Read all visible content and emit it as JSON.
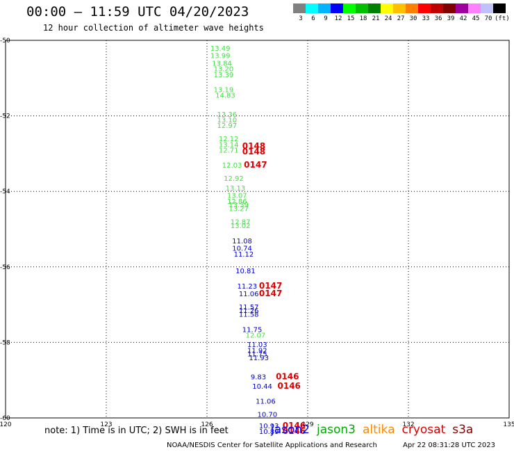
{
  "header": {
    "title": "00:00 – 11:59 UTC 04/20/2023",
    "subtitle": "12 hour collection of altimeter wave heights"
  },
  "color_scale": {
    "swatches": [
      "#808080",
      "#00ffff",
      "#00b4ff",
      "#0000ff",
      "#00ff00",
      "#00c000",
      "#008000",
      "#ffff00",
      "#ffc000",
      "#ff8000",
      "#ff0000",
      "#c00000",
      "#800000",
      "#a000a0",
      "#ff80ff",
      "#c0c0ff",
      "#000000"
    ],
    "labels": [
      "3",
      "6",
      "9",
      "12",
      "15",
      "18",
      "21",
      "24",
      "27",
      "30",
      "33",
      "36",
      "39",
      "42",
      "45",
      "70",
      "(ft)"
    ]
  },
  "note": "note: 1) Time is in UTC; 2) SWH is in feet",
  "legend": [
    {
      "label": "jason2",
      "color": "#0000ff"
    },
    {
      "label": "jason3",
      "color": "#00aa00"
    },
    {
      "label": "altika",
      "color": "#ff8800"
    },
    {
      "label": "cryosat",
      "color": "#dd0000"
    },
    {
      "label": "s3a",
      "color": "#880000"
    }
  ],
  "footer": {
    "credit": "NOAA/NESDIS Center for Satellite Applications and Research",
    "date": "Apr 22 08:31:28 UTC 2023"
  },
  "chart_data": {
    "type": "scatter",
    "xlim": [
      120,
      135
    ],
    "ylim": [
      -60,
      -50
    ],
    "x_ticks": [
      "120",
      "123",
      "126",
      "129",
      "132",
      "135"
    ],
    "y_ticks": [
      "-50",
      "-52",
      "-54",
      "-56",
      "-58",
      "-60"
    ],
    "grid": true,
    "series": [
      {
        "color": "#44dd44",
        "points": [
          {
            "x": 126.1,
            "y": -50.2,
            "label": "13.49"
          },
          {
            "x": 126.1,
            "y": -50.4,
            "label": "13.99"
          },
          {
            "x": 126.15,
            "y": -50.6,
            "label": "13.84"
          },
          {
            "x": 126.2,
            "y": -50.75,
            "label": "13.20"
          },
          {
            "x": 126.2,
            "y": -50.9,
            "label": "13.39"
          },
          {
            "x": 126.2,
            "y": -51.3,
            "label": "13.19"
          },
          {
            "x": 126.25,
            "y": -51.45,
            "label": "14.83"
          },
          {
            "x": 126.3,
            "y": -51.95,
            "label": "13.36"
          },
          {
            "x": 126.3,
            "y": -52.1,
            "label": "13.10"
          },
          {
            "x": 126.3,
            "y": -52.25,
            "label": "12.97"
          },
          {
            "x": 126.35,
            "y": -52.6,
            "label": "12.12"
          },
          {
            "x": 126.35,
            "y": -52.75,
            "label": "13.14"
          },
          {
            "x": 126.35,
            "y": -52.9,
            "label": "12.71"
          },
          {
            "x": 126.45,
            "y": -53.3,
            "label": "12.03"
          },
          {
            "x": 126.5,
            "y": -53.65,
            "label": "12.92"
          },
          {
            "x": 126.55,
            "y": -53.9,
            "label": "13.13"
          },
          {
            "x": 126.6,
            "y": -54.1,
            "label": "13.07"
          },
          {
            "x": 126.6,
            "y": -54.25,
            "label": "12.86"
          },
          {
            "x": 126.65,
            "y": -54.35,
            "label": "13.39"
          },
          {
            "x": 126.65,
            "y": -54.45,
            "label": "13.27"
          },
          {
            "x": 126.7,
            "y": -54.8,
            "label": "12.87"
          },
          {
            "x": 126.7,
            "y": -54.9,
            "label": "13.02"
          },
          {
            "x": 127.15,
            "y": -57.8,
            "label": "12.07"
          }
        ]
      },
      {
        "color": "#0000cc",
        "points": [
          {
            "x": 126.75,
            "y": -55.3,
            "label": "11.08"
          },
          {
            "x": 126.75,
            "y": -55.5,
            "label": "10.74"
          },
          {
            "x": 126.8,
            "y": -55.65,
            "label": "11.12"
          },
          {
            "x": 126.85,
            "y": -56.1,
            "label": "10.81"
          },
          {
            "x": 126.9,
            "y": -56.5,
            "label": "11.23"
          },
          {
            "x": 126.95,
            "y": -56.7,
            "label": "11.06"
          },
          {
            "x": 126.95,
            "y": -57.05,
            "label": "11.57"
          },
          {
            "x": 126.95,
            "y": -57.15,
            "label": "11.26"
          },
          {
            "x": 126.95,
            "y": -57.25,
            "label": "11.58"
          },
          {
            "x": 127.05,
            "y": -57.65,
            "label": "11.75"
          },
          {
            "x": 127.2,
            "y": -58.05,
            "label": "11.03"
          },
          {
            "x": 127.2,
            "y": -58.2,
            "label": "11.92"
          },
          {
            "x": 127.2,
            "y": -58.3,
            "label": "11.75"
          },
          {
            "x": 127.25,
            "y": -58.4,
            "label": "11.93"
          },
          {
            "x": 127.3,
            "y": -58.9,
            "label": "9.83"
          },
          {
            "x": 127.35,
            "y": -59.15,
            "label": "10.44"
          },
          {
            "x": 127.45,
            "y": -59.55,
            "label": "11.06"
          },
          {
            "x": 127.5,
            "y": -59.9,
            "label": "10.70"
          },
          {
            "x": 127.55,
            "y": -60.2,
            "label": "10.93"
          },
          {
            "x": 127.55,
            "y": -60.35,
            "label": "10.89"
          }
        ]
      },
      {
        "color": "#dd0000",
        "points": [
          {
            "x": 127.05,
            "y": -52.8,
            "label": "0148"
          },
          {
            "x": 127.05,
            "y": -52.95,
            "label": "0148"
          },
          {
            "x": 127.1,
            "y": -53.3,
            "label": "0147"
          },
          {
            "x": 127.55,
            "y": -56.5,
            "label": "0147"
          },
          {
            "x": 127.55,
            "y": -56.7,
            "label": "0147"
          },
          {
            "x": 128.05,
            "y": -58.9,
            "label": "0146"
          },
          {
            "x": 128.1,
            "y": -59.15,
            "label": "0146"
          },
          {
            "x": 128.25,
            "y": -60.2,
            "label": "0146"
          },
          {
            "x": 128.25,
            "y": -60.35,
            "label": "0146"
          }
        ]
      }
    ]
  }
}
